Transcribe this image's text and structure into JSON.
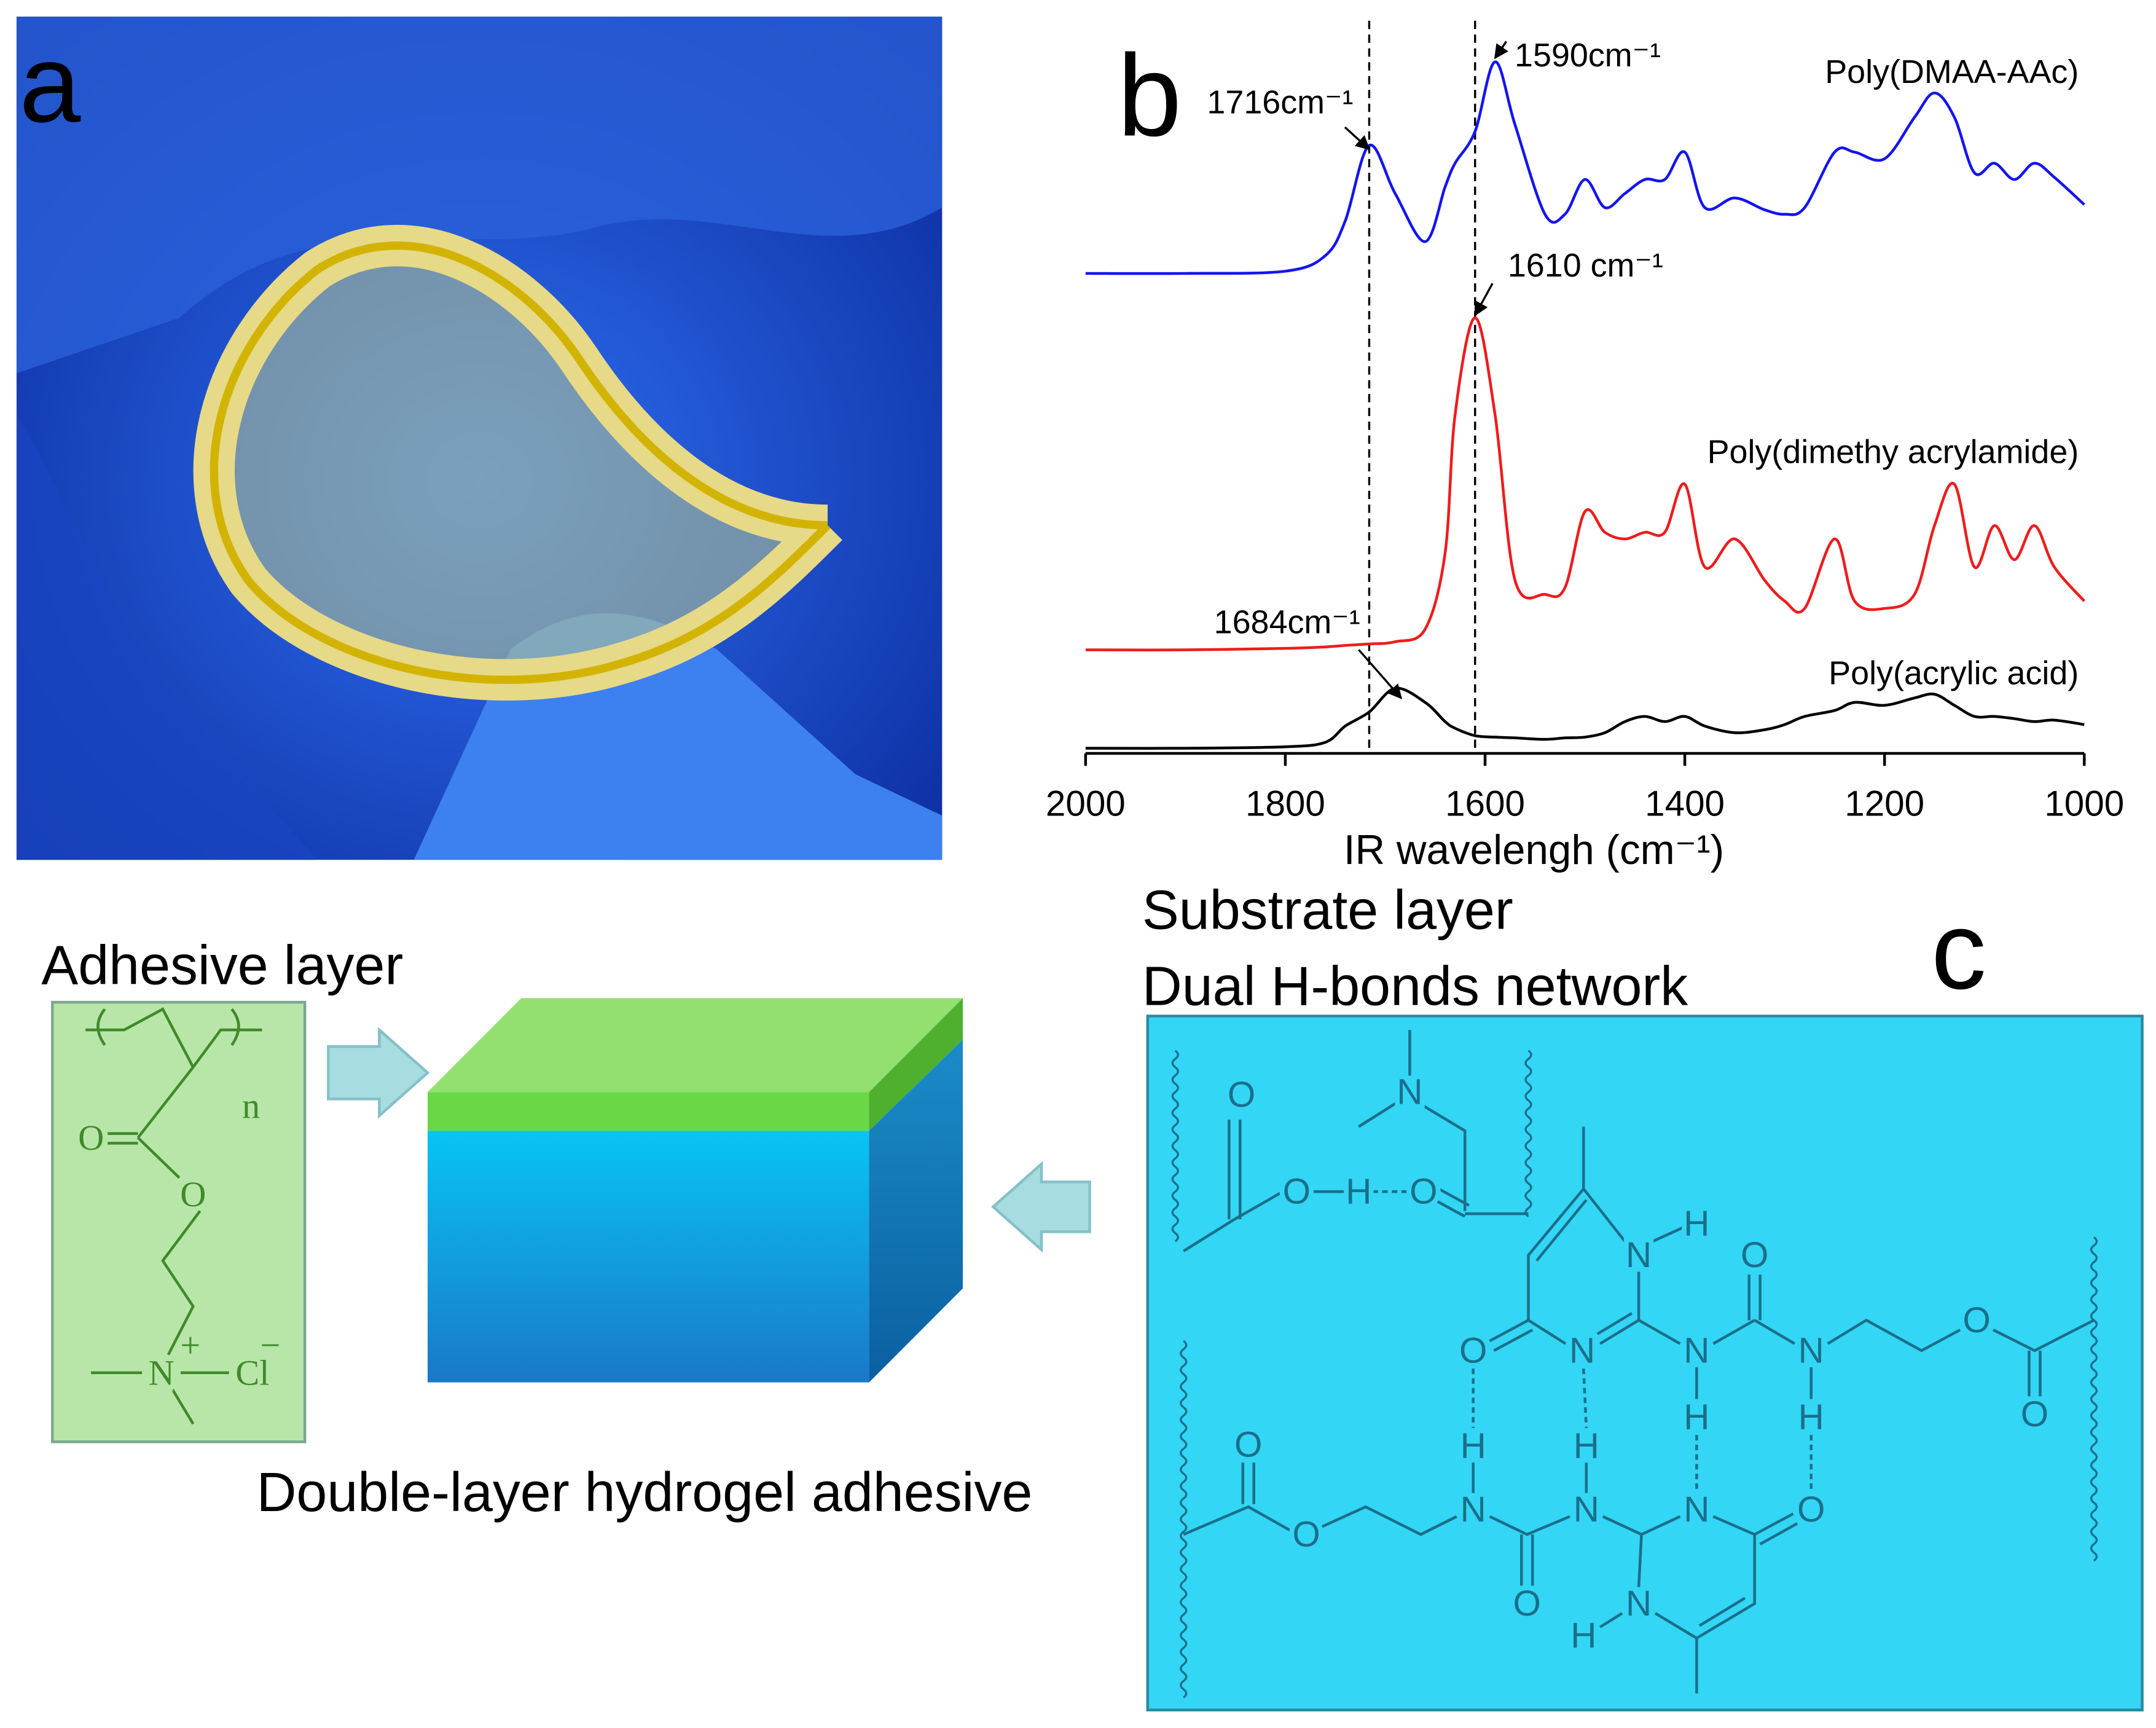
{
  "panel_a": {
    "label": "a"
  },
  "chart_data": {
    "type": "line",
    "panel_label": "b",
    "xlabel": "IR wavelengh (cm⁻¹)",
    "x": [
      2000,
      1900,
      1800,
      1760,
      1740,
      1716,
      1690,
      1660,
      1640,
      1630,
      1610,
      1590,
      1570,
      1540,
      1520,
      1500,
      1480,
      1460,
      1440,
      1420,
      1400,
      1380,
      1350,
      1320,
      1300,
      1280,
      1250,
      1230,
      1200,
      1170,
      1150,
      1130,
      1110,
      1090,
      1070,
      1050,
      1030,
      1000
    ],
    "xlim": [
      2000,
      1000
    ],
    "xticks": [
      2000,
      1800,
      1600,
      1400,
      1200,
      1000
    ],
    "ylim": [
      0,
      100
    ],
    "vlines": [
      1716,
      1610
    ],
    "series": [
      {
        "name": "Poly(DMAA-AAc)",
        "color": "#1414f0",
        "values": [
          64.9,
          64.9,
          65.2,
          67.3,
          72.0,
          82.2,
          75.7,
          69.2,
          76.6,
          79.8,
          84.1,
          93.5,
          85.0,
          72.9,
          72.9,
          77.6,
          73.8,
          75.7,
          77.6,
          77.6,
          81.3,
          73.8,
          75.1,
          73.5,
          72.9,
          73.8,
          81.3,
          81.3,
          80.4,
          86.0,
          89.3,
          86.0,
          78.5,
          79.8,
          77.6,
          79.8,
          77.9,
          74.2
        ]
      },
      {
        "name": "Poly(dimethy acrylamide)",
        "color": "#ee1c1c",
        "values": [
          14.0,
          14.0,
          14.2,
          14.4,
          14.6,
          14.8,
          15.1,
          16.8,
          27.1,
          45.8,
          58.9,
          45.8,
          23.4,
          21.5,
          22.4,
          32.7,
          29.9,
          29.0,
          29.9,
          29.9,
          36.4,
          25.2,
          29.0,
          23.4,
          20.6,
          19.6,
          29.0,
          20.6,
          19.6,
          21.5,
          30.8,
          36.4,
          25.2,
          30.8,
          26.2,
          30.8,
          25.2,
          20.6
        ]
      },
      {
        "name": "Poly(acrylic acid)",
        "color": "#000000",
        "values": [
          0.7,
          0.7,
          0.9,
          1.5,
          3.7,
          5.6,
          8.8,
          6.9,
          4.3,
          3.4,
          2.4,
          2.2,
          2.1,
          1.9,
          2.1,
          2.2,
          2.8,
          4.3,
          5.0,
          4.3,
          5.0,
          3.7,
          2.8,
          3.2,
          3.9,
          5.0,
          5.8,
          6.9,
          6.5,
          7.5,
          8.0,
          6.5,
          5.0,
          5.0,
          4.7,
          4.3,
          4.5,
          3.9
        ]
      }
    ],
    "annotations": [
      {
        "text": "1716cm⁻¹",
        "x": 1716
      },
      {
        "text": "1590cm⁻¹",
        "x": 1590
      },
      {
        "text": "1610 cm⁻¹",
        "x": 1610
      },
      {
        "text": "1684cm⁻¹",
        "x": 1684
      }
    ]
  },
  "panel_c": {
    "label": "c",
    "substrate_title": "Substrate layer",
    "network_title": "Dual H-bonds network",
    "adhesive_title": "Adhesive layer",
    "product_label": "Double-layer hydrogel adhesive",
    "adhesive_atoms": [
      "n",
      "O",
      "O",
      "+",
      "N",
      "Cl",
      "−"
    ],
    "network_atoms": [
      "O",
      "N",
      "O",
      "H",
      "O",
      "H",
      "N",
      "O",
      "O",
      "N",
      "N",
      "N",
      "O",
      "O",
      "H",
      "H",
      "O",
      "H",
      "H",
      "N",
      "N",
      "N",
      "O",
      "O",
      "O",
      "N",
      "H"
    ]
  }
}
